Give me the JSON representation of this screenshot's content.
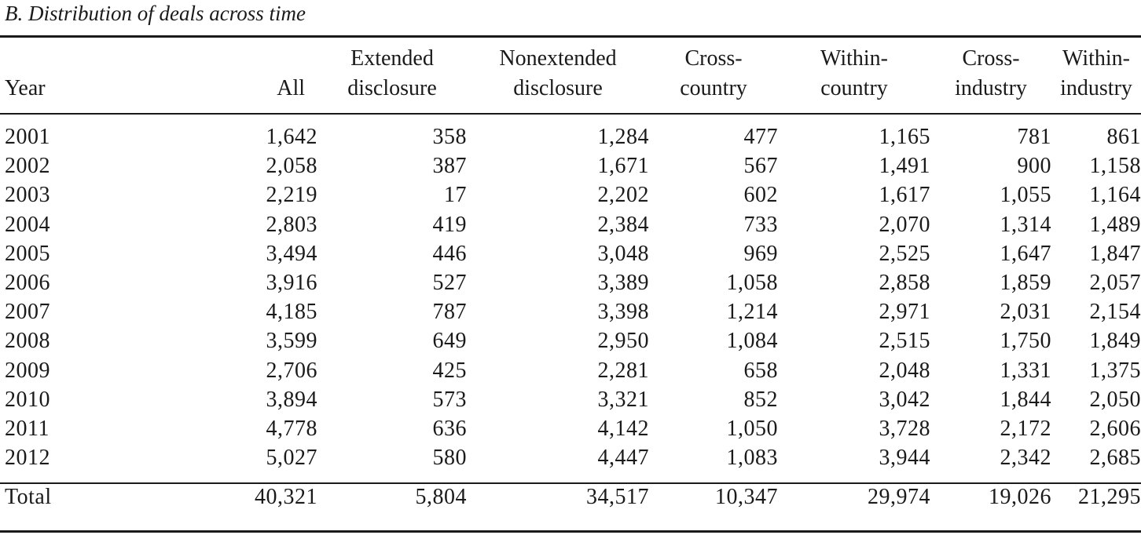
{
  "caption": "B. Distribution of deals across time",
  "columns": [
    {
      "line1": "",
      "line2": "Year"
    },
    {
      "line1": "",
      "line2": "All"
    },
    {
      "line1": "Extended",
      "line2": "disclosure"
    },
    {
      "line1": "Nonextended",
      "line2": "disclosure"
    },
    {
      "line1": "Cross-",
      "line2": "country"
    },
    {
      "line1": "Within-",
      "line2": "country"
    },
    {
      "line1": "Cross-",
      "line2": "industry"
    },
    {
      "line1": "Within-",
      "line2": "industry"
    }
  ],
  "rows": [
    [
      "2001",
      "1,642",
      "358",
      "1,284",
      "477",
      "1,165",
      "781",
      "861"
    ],
    [
      "2002",
      "2,058",
      "387",
      "1,671",
      "567",
      "1,491",
      "900",
      "1,158"
    ],
    [
      "2003",
      "2,219",
      "17",
      "2,202",
      "602",
      "1,617",
      "1,055",
      "1,164"
    ],
    [
      "2004",
      "2,803",
      "419",
      "2,384",
      "733",
      "2,070",
      "1,314",
      "1,489"
    ],
    [
      "2005",
      "3,494",
      "446",
      "3,048",
      "969",
      "2,525",
      "1,647",
      "1,847"
    ],
    [
      "2006",
      "3,916",
      "527",
      "3,389",
      "1,058",
      "2,858",
      "1,859",
      "2,057"
    ],
    [
      "2007",
      "4,185",
      "787",
      "3,398",
      "1,214",
      "2,971",
      "2,031",
      "2,154"
    ],
    [
      "2008",
      "3,599",
      "649",
      "2,950",
      "1,084",
      "2,515",
      "1,750",
      "1,849"
    ],
    [
      "2009",
      "2,706",
      "425",
      "2,281",
      "658",
      "2,048",
      "1,331",
      "1,375"
    ],
    [
      "2010",
      "3,894",
      "573",
      "3,321",
      "852",
      "3,042",
      "1,844",
      "2,050"
    ],
    [
      "2011",
      "4,778",
      "636",
      "4,142",
      "1,050",
      "3,728",
      "2,172",
      "2,606"
    ],
    [
      "2012",
      "5,027",
      "580",
      "4,447",
      "1,083",
      "3,944",
      "2,342",
      "2,685"
    ]
  ],
  "total": [
    "Total",
    "40,321",
    "5,804",
    "34,517",
    "10,347",
    "29,974",
    "19,026",
    "21,295"
  ]
}
